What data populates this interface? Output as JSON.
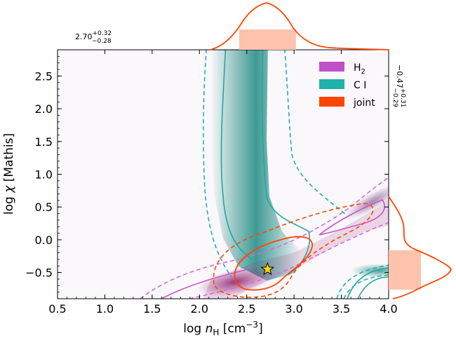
{
  "chart_data": {
    "type": "contour",
    "xlabel": "log n_H [cm^-3]",
    "ylabel": "log χ [Mathis]",
    "xlim": [
      0.5,
      4.0
    ],
    "ylim": [
      -0.9,
      2.9
    ],
    "x_ticks": [
      "0.5",
      "1.0",
      "1.5",
      "2.0",
      "2.5",
      "3.0",
      "3.5",
      "4.0"
    ],
    "y_ticks": [
      "−0.5",
      "0.0",
      "0.5",
      "1.0",
      "1.5",
      "2.0",
      "2.5"
    ],
    "legend": [
      {
        "label": "H2",
        "color": "#c050c8"
      },
      {
        "label": "C I",
        "color": "#20b2aa"
      },
      {
        "label": "joint",
        "color": "#ff4500"
      }
    ],
    "best_fit": {
      "x": 2.72,
      "y": -0.45,
      "marker": "star"
    },
    "marginal_x": {
      "label_main": "2.70",
      "label_upper": "+0.32",
      "label_lower": "−0.28",
      "peak": 2.7,
      "interval": [
        2.42,
        3.02
      ]
    },
    "marginal_y": {
      "label_main": "−0.47",
      "label_upper": "+0.31",
      "label_lower": "−0.29",
      "peak": -0.47,
      "interval": [
        -0.76,
        -0.16
      ]
    },
    "series": [
      {
        "name": "C I",
        "color": "#20b2aa",
        "density_ridge": [
          [
            2.55,
            2.9
          ],
          [
            2.52,
            1.0
          ],
          [
            2.55,
            0.0
          ],
          [
            2.75,
            -0.45
          ]
        ],
        "contour_levels": [
          "68% solid",
          "95% dashed"
        ]
      },
      {
        "name": "H2",
        "color": "#c050c8",
        "density_ridge": [
          [
            2.1,
            -0.75
          ],
          [
            3.0,
            -0.3
          ],
          [
            4.0,
            0.6
          ]
        ],
        "contour_levels": [
          "68% solid",
          "95% dashed"
        ]
      },
      {
        "name": "joint",
        "color": "#ff4500",
        "density_ridge": [
          [
            2.72,
            -0.45
          ]
        ],
        "contour_levels": [
          "68% solid",
          "95% dashed"
        ]
      }
    ]
  }
}
